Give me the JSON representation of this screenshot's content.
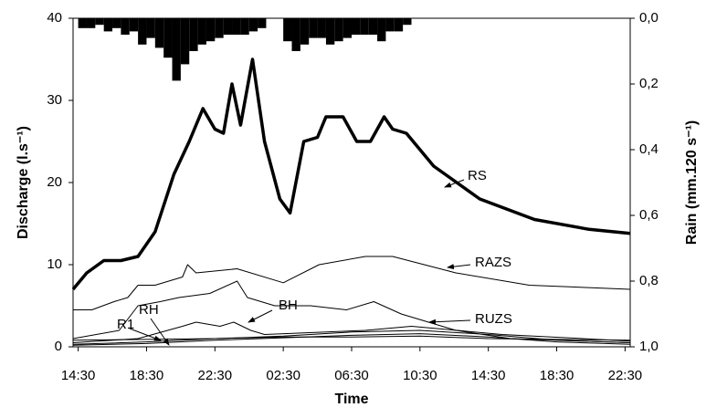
{
  "chart_data": {
    "type": "line",
    "xlabel": "Time",
    "ylabel": "Discharge (l.s⁻¹)",
    "y2label": "Rain (mm.120 s⁻¹)",
    "xlim": [
      -0.3,
      32.3
    ],
    "xticks": [
      {
        "value": 0,
        "label": "14:30"
      },
      {
        "value": 4,
        "label": "18:30"
      },
      {
        "value": 8,
        "label": "22:30"
      },
      {
        "value": 12,
        "label": "02:30"
      },
      {
        "value": 16,
        "label": "06:30"
      },
      {
        "value": 20,
        "label": "10:30"
      },
      {
        "value": 24,
        "label": "14:30"
      },
      {
        "value": 28,
        "label": "18:30"
      },
      {
        "value": 32,
        "label": "22:30"
      }
    ],
    "ylim": [
      0,
      40
    ],
    "yticks": [
      0,
      10,
      20,
      30,
      40
    ],
    "y2lim": [
      1,
      0
    ],
    "y2ticks": [
      {
        "value": 0,
        "label": "0,0"
      },
      {
        "value": 0.2,
        "label": "0,2"
      },
      {
        "value": 0.4,
        "label": "0,4"
      },
      {
        "value": 0.6,
        "label": "0,6"
      },
      {
        "value": 0.8,
        "label": "0,8"
      },
      {
        "value": 1,
        "label": "1,0"
      }
    ],
    "rain": {
      "type": "bar",
      "axis": "y2",
      "color": "#000000",
      "bar_width": 0.5,
      "x": [
        0,
        0.5,
        1,
        1.5,
        2,
        2.5,
        3,
        3.5,
        4,
        4.5,
        5,
        5.5,
        6,
        6.5,
        7,
        7.5,
        8,
        8.5,
        9,
        9.5,
        10,
        10.5,
        11,
        11.5,
        12,
        12.5,
        13,
        13.5,
        14,
        14.5,
        15,
        15.5,
        16,
        16.5,
        17,
        17.5,
        18,
        18.5,
        19,
        19.5
      ],
      "values": [
        0.03,
        0.03,
        0.02,
        0.04,
        0.03,
        0.05,
        0.04,
        0.08,
        0.06,
        0.09,
        0.12,
        0.19,
        0.14,
        0.1,
        0.08,
        0.07,
        0.06,
        0.05,
        0.05,
        0.05,
        0.04,
        0.03,
        0,
        0,
        0.07,
        0.1,
        0.08,
        0.06,
        0.06,
        0.08,
        0.07,
        0.06,
        0.05,
        0.05,
        0.05,
        0.07,
        0.04,
        0.04,
        0.02,
        0
      ]
    },
    "series": [
      {
        "name": "RS",
        "color": "#000000",
        "line_width": 3.5,
        "x": [
          -0.3,
          0.5,
          1.5,
          2.5,
          3.5,
          4.5,
          5.6,
          6.5,
          7.3,
          8,
          8.5,
          9,
          9.5,
          10.2,
          10.9,
          11.8,
          12.4,
          13.2,
          14,
          14.5,
          15.5,
          16.3,
          17.1,
          17.9,
          18.4,
          19.2,
          20.8,
          23.5,
          26.7,
          29.9,
          32.3
        ],
        "values": [
          7,
          9,
          10.5,
          10.5,
          11,
          14,
          21,
          25,
          29,
          26.5,
          26,
          32,
          27,
          35,
          25,
          18,
          16.3,
          25,
          25.5,
          28,
          28,
          25,
          25,
          28,
          26.5,
          26,
          22,
          18,
          15.5,
          14.3,
          13.8
        ]
      },
      {
        "name": "RAZS",
        "color": "#000000",
        "line_width": 1,
        "x": [
          -0.3,
          0.8,
          2.1,
          2.9,
          3.5,
          4.5,
          6.1,
          6.4,
          6.9,
          9.3,
          12,
          14.1,
          16.8,
          18.4,
          22.1,
          26.4,
          32.3
        ],
        "values": [
          4.5,
          4.5,
          5.5,
          6,
          7.5,
          7.5,
          8.5,
          10,
          9,
          9.5,
          7.8,
          10,
          11,
          11,
          9,
          7.5,
          7
        ]
      },
      {
        "color": "#000000",
        "line_width": 1,
        "x": [
          -0.3,
          2.4,
          3.5,
          4.8,
          5.9,
          7.7,
          9.3,
          9.9,
          11.5,
          13.6,
          15.7,
          17.3,
          18.9,
          22.1,
          25.3,
          32.3
        ],
        "values": [
          1,
          2,
          5,
          5.5,
          6,
          6.5,
          8,
          6,
          5,
          5,
          4.5,
          5.5,
          4,
          2,
          1,
          0.5
        ]
      },
      {
        "name": "BH",
        "color": "#000000",
        "line_width": 1,
        "x": [
          -0.3,
          3.5,
          6.1,
          6.9,
          8.3,
          9.1,
          10.1,
          10.9,
          16.8,
          19.5,
          24.8,
          32.3
        ],
        "values": [
          0.5,
          1,
          2.5,
          3,
          2.5,
          3,
          2,
          1.5,
          2,
          2.5,
          1.5,
          0.7
        ]
      },
      {
        "name": "RUZS",
        "color": "#000000",
        "line_width": 1,
        "x": [
          -0.3,
          4,
          8,
          12,
          16,
          20,
          24,
          28,
          32.3
        ],
        "values": [
          0.3,
          0.6,
          1,
          1.3,
          1.8,
          2,
          1.5,
          0.8,
          0.5
        ]
      },
      {
        "name": "RH",
        "color": "#000000",
        "line_width": 1,
        "x": [
          -0.3,
          4,
          8,
          12,
          16,
          20,
          24,
          28,
          32.3
        ],
        "values": [
          0.2,
          0.4,
          0.8,
          1.1,
          1.4,
          1.6,
          1.2,
          0.6,
          0.3
        ]
      },
      {
        "name": "R1",
        "color": "#000000",
        "line_width": 1,
        "x": [
          -0.3,
          4,
          8,
          12,
          16,
          20,
          24,
          28,
          32.3
        ],
        "values": [
          0.8,
          0.9,
          1,
          1.2,
          1.2,
          1.3,
          1,
          0.9,
          0.8
        ]
      }
    ]
  }
}
